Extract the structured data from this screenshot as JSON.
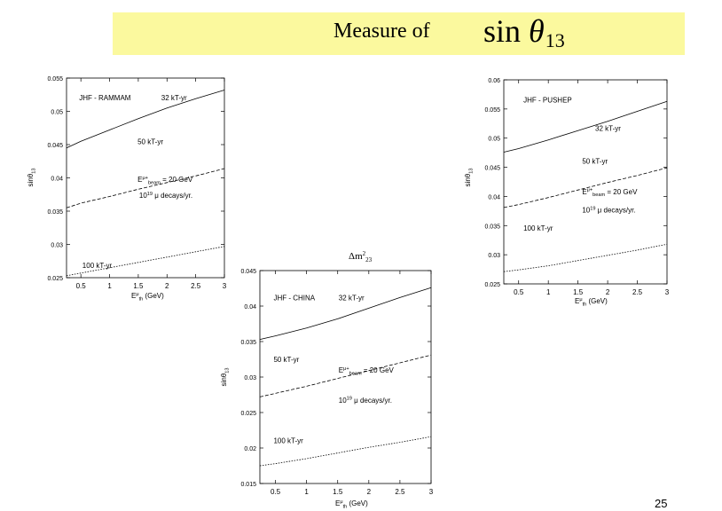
{
  "slide": {
    "title_text": "Measure of",
    "title_sin": "sin",
    "title_theta": "θ",
    "title_sub": "13",
    "dm_prefix": "Δm",
    "dm_sup": "2",
    "dm_sub": "23",
    "page_number": "25",
    "title_bg_color": "#fbf99e"
  },
  "chart_data": [
    {
      "type": "line",
      "title": "JHF - RAMMAM",
      "xlabel": "E^μ_th (GeV)",
      "ylabel": "sinθ13",
      "xlim": [
        0.25,
        3
      ],
      "ylim": [
        0.025,
        0.055
      ],
      "x_ticks": [
        0.5,
        1,
        1.5,
        2,
        2.5,
        3
      ],
      "x_tick_labels": [
        "0.5",
        "1",
        "1.5",
        "2",
        "2.5",
        "3"
      ],
      "y_ticks": [
        0.025,
        0.03,
        0.035,
        0.04,
        0.045,
        0.05,
        0.055
      ],
      "y_tick_labels": [
        "0.025",
        "0.03",
        "0.035",
        "0.04",
        "0.045",
        "0.05",
        "0.055"
      ],
      "annotation_beam": "E^μ+_beam = 20 GeV",
      "annotation_decays": "10^19 μ decays/yr.",
      "series": [
        {
          "name": "32 kT-yr",
          "style": "solid",
          "x": [
            0.25,
            0.5,
            1,
            1.5,
            2,
            2.5,
            3
          ],
          "y": [
            0.0445,
            0.0455,
            0.0472,
            0.0489,
            0.0505,
            0.0519,
            0.0532
          ]
        },
        {
          "name": "50 kT-yr",
          "style": "dashed",
          "x": [
            0.25,
            0.5,
            1,
            1.5,
            2,
            2.5,
            3
          ],
          "y": [
            0.0355,
            0.0362,
            0.0372,
            0.0383,
            0.0393,
            0.0403,
            0.0414
          ]
        },
        {
          "name": "100 kT-yr",
          "style": "dotted",
          "x": [
            0.25,
            0.5,
            1,
            1.5,
            2,
            2.5,
            3
          ],
          "y": [
            0.0253,
            0.0257,
            0.0265,
            0.0273,
            0.0281,
            0.0289,
            0.0297
          ]
        }
      ]
    },
    {
      "type": "line",
      "title": "JHF - CHINA",
      "xlabel": "E^μ_th (GeV)",
      "ylabel": "sinθ13",
      "xlim": [
        0.25,
        3
      ],
      "ylim": [
        0.015,
        0.045
      ],
      "x_ticks": [
        0.5,
        1,
        1.5,
        2,
        2.5,
        3
      ],
      "x_tick_labels": [
        "0.5",
        "1",
        "1.5",
        "2",
        "2.5",
        "3"
      ],
      "y_ticks": [
        0.015,
        0.02,
        0.025,
        0.03,
        0.035,
        0.04,
        0.045
      ],
      "y_tick_labels": [
        "0.015",
        "0.02",
        "0.025",
        "0.03",
        "0.035",
        "0.04",
        "0.045"
      ],
      "annotation_beam": "E^μ+_beam = 20 GeV",
      "annotation_decays": "10^19 μ decays/yr.",
      "series": [
        {
          "name": "32 kT-yr",
          "style": "solid",
          "x": [
            0.25,
            0.5,
            1,
            1.5,
            2,
            2.5,
            3
          ],
          "y": [
            0.0353,
            0.0358,
            0.0369,
            0.0382,
            0.0397,
            0.0412,
            0.0426
          ]
        },
        {
          "name": "50 kT-yr",
          "style": "dashed",
          "x": [
            0.25,
            0.5,
            1,
            1.5,
            2,
            2.5,
            3
          ],
          "y": [
            0.0272,
            0.0277,
            0.0287,
            0.0298,
            0.0309,
            0.032,
            0.0331
          ]
        },
        {
          "name": "100 kT-yr",
          "style": "dotted",
          "x": [
            0.25,
            0.5,
            1,
            1.5,
            2,
            2.5,
            3
          ],
          "y": [
            0.0175,
            0.0178,
            0.0185,
            0.0193,
            0.0201,
            0.0208,
            0.0216
          ]
        }
      ]
    },
    {
      "type": "line",
      "title": "JHF - PUSHEP",
      "xlabel": "E^μ_th (GeV)",
      "ylabel": "sinθ13",
      "xlim": [
        0.25,
        3
      ],
      "ylim": [
        0.025,
        0.06
      ],
      "x_ticks": [
        0.5,
        1,
        1.5,
        2,
        2.5,
        3
      ],
      "x_tick_labels": [
        "0.5",
        "1",
        "1.5",
        "2",
        "2.5",
        "3"
      ],
      "y_ticks": [
        0.025,
        0.03,
        0.035,
        0.04,
        0.045,
        0.05,
        0.055,
        0.06
      ],
      "y_tick_labels": [
        "0.025",
        "0.03",
        "0.035",
        "0.04",
        "0.045",
        "0.05",
        "0.055",
        "0.06"
      ],
      "annotation_beam": "E^μ+_beam = 20 GeV",
      "annotation_decays": "10^19 μ decays/yr.",
      "series": [
        {
          "name": "32 kT-yr",
          "style": "solid",
          "x": [
            0.25,
            0.5,
            1,
            1.5,
            2,
            2.5,
            3
          ],
          "y": [
            0.0476,
            0.0482,
            0.0497,
            0.0513,
            0.0529,
            0.0546,
            0.0563
          ]
        },
        {
          "name": "50 kT-yr",
          "style": "dashed",
          "x": [
            0.25,
            0.5,
            1,
            1.5,
            2,
            2.5,
            3
          ],
          "y": [
            0.0381,
            0.0386,
            0.0398,
            0.0411,
            0.0424,
            0.0436,
            0.0449
          ]
        },
        {
          "name": "100 kT-yr",
          "style": "dotted",
          "x": [
            0.25,
            0.5,
            1,
            1.5,
            2,
            2.5,
            3
          ],
          "y": [
            0.0271,
            0.0274,
            0.0281,
            0.029,
            0.0299,
            0.0308,
            0.0318
          ]
        }
      ]
    }
  ]
}
